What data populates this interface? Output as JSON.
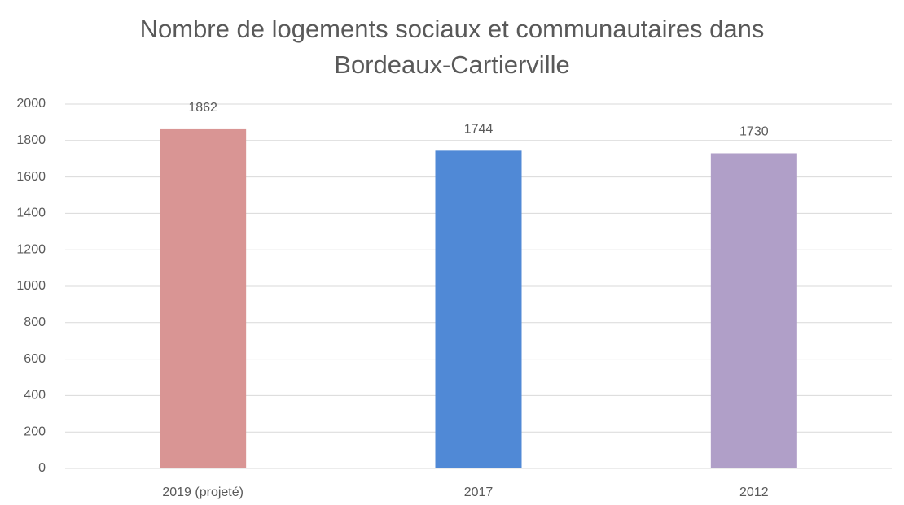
{
  "chart_data": {
    "type": "bar",
    "title": "Nombre de logements sociaux et communautaires dans Bordeaux-Cartierville",
    "categories": [
      "2019 (projeté)",
      "2017",
      "2012"
    ],
    "values": [
      1862,
      1744,
      1730
    ],
    "colors": [
      "#d99594",
      "#5089d6",
      "#b09fc8"
    ],
    "ylim": [
      0,
      2000
    ],
    "yticks": [
      0,
      200,
      400,
      600,
      800,
      1000,
      1200,
      1400,
      1600,
      1800,
      2000
    ],
    "grid": true
  }
}
